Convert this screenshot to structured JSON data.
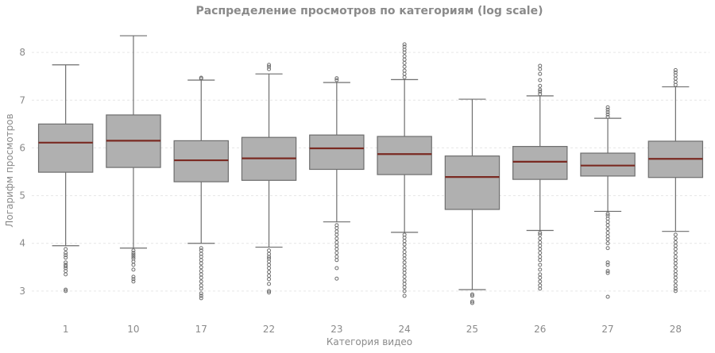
{
  "chart_data": {
    "type": "box",
    "title": "Распределение просмотров по категориям (log scale)",
    "xlabel": "Категория видео",
    "ylabel": "Логарифм просмотров",
    "ylim": [
      2.45,
      8.6
    ],
    "yticks": [
      3,
      4,
      5,
      6,
      7,
      8
    ],
    "grid": true,
    "colors": {
      "box": "#b0b0b0",
      "edge": "#6e6e6e",
      "median": "#7a2a22",
      "grid": "#e6e6e6",
      "text": "#8a8a8a"
    },
    "categories": [
      "1",
      "10",
      "17",
      "22",
      "23",
      "24",
      "25",
      "26",
      "27",
      "28"
    ],
    "boxes": [
      {
        "category": "1",
        "whisker_low": 3.95,
        "q1": 5.49,
        "median": 6.11,
        "q3": 6.5,
        "whisker_high": 7.74,
        "outliers": [
          3.0,
          3.03,
          3.35,
          3.42,
          3.48,
          3.52,
          3.55,
          3.6,
          3.7,
          3.75,
          3.8,
          3.88
        ]
      },
      {
        "category": "10",
        "whisker_low": 3.9,
        "q1": 5.59,
        "median": 6.15,
        "q3": 6.69,
        "whisker_high": 8.35,
        "outliers": [
          3.2,
          3.25,
          3.3,
          3.45,
          3.55,
          3.62,
          3.68,
          3.72,
          3.76,
          3.8,
          3.85
        ]
      },
      {
        "category": "17",
        "whisker_low": 4.0,
        "q1": 5.29,
        "median": 5.74,
        "q3": 6.15,
        "whisker_high": 7.42,
        "outliers": [
          2.85,
          2.9,
          2.95,
          3.05,
          3.12,
          3.2,
          3.28,
          3.35,
          3.42,
          3.5,
          3.58,
          3.65,
          3.72,
          3.78,
          3.85,
          3.9,
          7.45,
          7.47
        ]
      },
      {
        "category": "22",
        "whisker_low": 3.92,
        "q1": 5.32,
        "median": 5.78,
        "q3": 6.22,
        "whisker_high": 7.55,
        "outliers": [
          2.97,
          3.0,
          3.15,
          3.25,
          3.32,
          3.4,
          3.48,
          3.55,
          3.62,
          3.68,
          3.72,
          3.78,
          3.85,
          7.65,
          7.7,
          7.74
        ]
      },
      {
        "category": "23",
        "whisker_low": 4.45,
        "q1": 5.55,
        "median": 5.99,
        "q3": 6.27,
        "whisker_high": 7.37,
        "outliers": [
          3.26,
          3.48,
          3.65,
          3.72,
          3.8,
          3.88,
          3.95,
          4.02,
          4.1,
          4.18,
          4.25,
          4.32,
          4.38,
          7.42,
          7.46
        ]
      },
      {
        "category": "24",
        "whisker_low": 4.23,
        "q1": 5.44,
        "median": 5.87,
        "q3": 6.24,
        "whisker_high": 7.43,
        "outliers": [
          2.9,
          3.0,
          3.08,
          3.15,
          3.22,
          3.3,
          3.38,
          3.45,
          3.52,
          3.6,
          3.68,
          3.75,
          3.82,
          3.9,
          3.98,
          4.05,
          4.12,
          4.18,
          7.48,
          7.55,
          7.62,
          7.7,
          7.78,
          7.85,
          7.92,
          8.0,
          8.06,
          8.12,
          8.17
        ]
      },
      {
        "category": "25",
        "whisker_low": 3.03,
        "q1": 4.71,
        "median": 5.39,
        "q3": 5.83,
        "whisker_high": 7.02,
        "outliers": [
          2.75,
          2.78,
          2.9,
          2.93
        ]
      },
      {
        "category": "26",
        "whisker_low": 4.27,
        "q1": 5.34,
        "median": 5.71,
        "q3": 6.03,
        "whisker_high": 7.09,
        "outliers": [
          3.05,
          3.12,
          3.2,
          3.28,
          3.35,
          3.45,
          3.55,
          3.65,
          3.72,
          3.8,
          3.88,
          3.95,
          4.02,
          4.1,
          4.18,
          4.22,
          7.13,
          7.18,
          7.22,
          7.3,
          7.42,
          7.55,
          7.65,
          7.72
        ]
      },
      {
        "category": "27",
        "whisker_low": 4.67,
        "q1": 5.41,
        "median": 5.63,
        "q3": 5.89,
        "whisker_high": 6.62,
        "outliers": [
          2.88,
          3.38,
          3.42,
          3.55,
          3.6,
          3.9,
          4.0,
          4.08,
          4.15,
          4.22,
          4.3,
          4.38,
          4.45,
          4.52,
          4.58,
          4.62,
          6.65,
          6.7,
          6.75,
          6.8,
          6.85
        ]
      },
      {
        "category": "28",
        "whisker_low": 4.25,
        "q1": 5.38,
        "median": 5.77,
        "q3": 6.14,
        "whisker_high": 7.28,
        "outliers": [
          3.0,
          3.05,
          3.12,
          3.2,
          3.28,
          3.35,
          3.42,
          3.5,
          3.58,
          3.65,
          3.72,
          3.8,
          3.88,
          3.95,
          4.02,
          4.1,
          4.18,
          7.32,
          7.38,
          7.45,
          7.52,
          7.58,
          7.63
        ]
      }
    ]
  }
}
